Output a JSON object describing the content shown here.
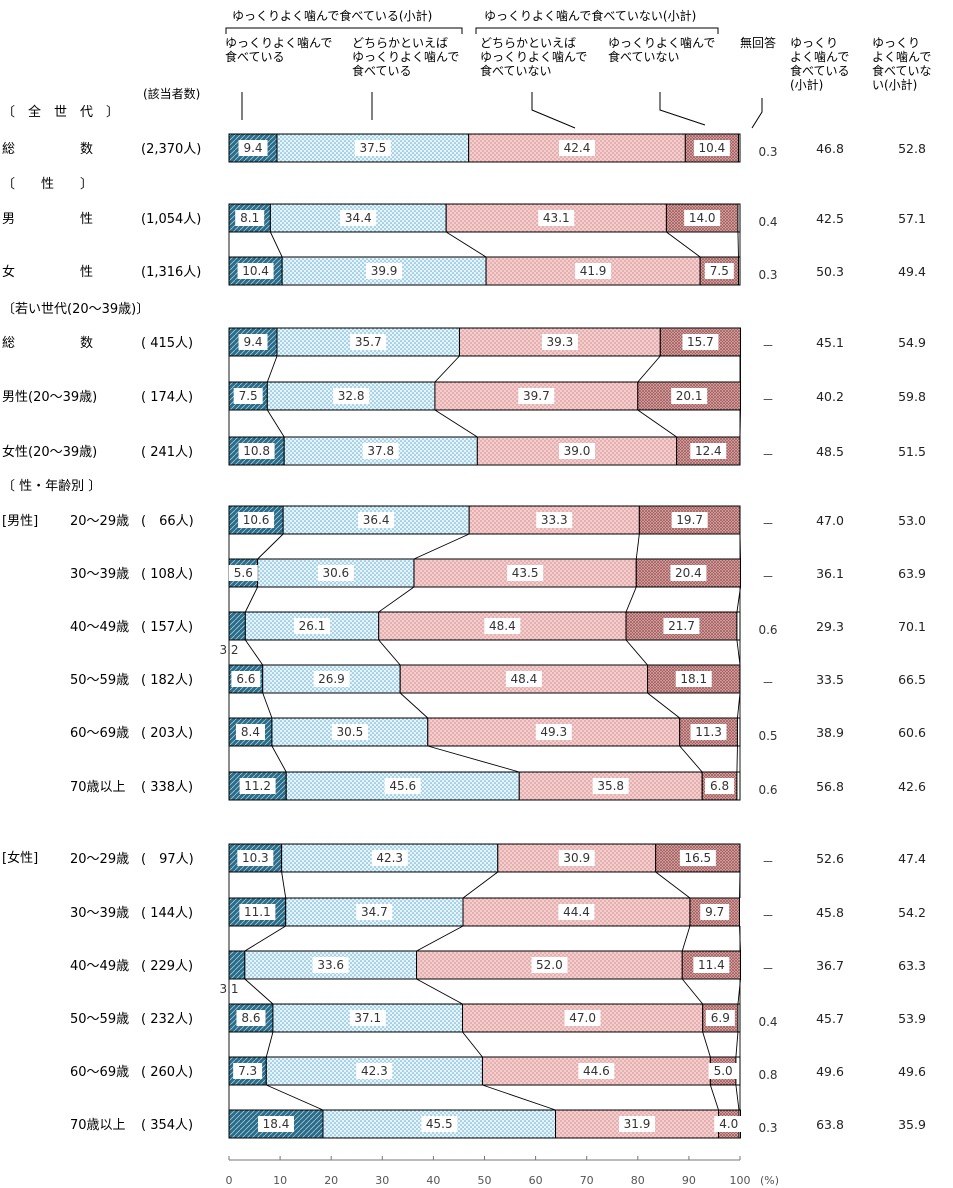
{
  "chart_data": {
    "type": "bar",
    "stacked": true,
    "orientation": "horizontal",
    "unit": "(%)",
    "xlim": [
      0,
      100
    ],
    "xticks": [
      "0",
      "10",
      "20",
      "30",
      "40",
      "50",
      "60",
      "70",
      "80",
      "90",
      "100"
    ],
    "group_headers": {
      "chew_subtotal": "ゆっくりよく噛んで食べている(小計)",
      "not_chew_subtotal": "ゆっくりよく噛んで食べていない(小計)"
    },
    "series": [
      {
        "name": "ゆっくりよく噛んで\n食べている",
        "color": "#2b6a84"
      },
      {
        "name": "どちらかといえば\nゆっくりよく噛んで\n食べている",
        "color": "#d4ecf7"
      },
      {
        "name": "どちらかといえば\nゆっくりよく噛んで\n食べていない",
        "color": "#f4c2c2"
      },
      {
        "name": "ゆっくりよく噛んで\n食べていない",
        "color": "#c47878"
      },
      {
        "name": "無回答",
        "color": "#ffffff"
      }
    ],
    "col_headers": {
      "count": "(該当者数)",
      "chew": "ゆっくり\nよく噛んで\n食べている\n(小計)",
      "not_chew": "ゆっくり\nよく噛んで\n食べていな\nい(小計)"
    },
    "section_labels": [
      {
        "text": "〔　全　世　代　〕"
      },
      {
        "text": "〔　　性　　〕"
      },
      {
        "text": "〔若い世代(20～39歳)〕"
      },
      {
        "text": "〔 性・年齢別 〕"
      }
    ],
    "group_tags": {
      "male": "[男性]",
      "female": "[女性]"
    },
    "rows": [
      {
        "label": "総　　　　　数",
        "n": "(2,370人)",
        "values": [
          9.4,
          37.5,
          42.4,
          10.4,
          0.3
        ],
        "labels": [
          "9.4",
          "37.5",
          "42.4",
          "10.4",
          "0.3"
        ],
        "chew": "46.8",
        "not_chew": "52.8"
      },
      {
        "label": "男　　　　　性",
        "n": "(1,054人)",
        "values": [
          8.1,
          34.4,
          43.1,
          14.0,
          0.4
        ],
        "labels": [
          "8.1",
          "34.4",
          "43.1",
          "14.0",
          "0.4"
        ],
        "chew": "42.5",
        "not_chew": "57.1"
      },
      {
        "label": "女　　　　　性",
        "n": "(1,316人)",
        "values": [
          10.4,
          39.9,
          41.9,
          7.5,
          0.3
        ],
        "labels": [
          "10.4",
          "39.9",
          "41.9",
          "7.5",
          "0.3"
        ],
        "chew": "50.3",
        "not_chew": "49.4"
      },
      {
        "label": "総　　　　　数",
        "n": "( 415人)",
        "values": [
          9.4,
          35.7,
          39.3,
          15.7,
          0
        ],
        "labels": [
          "9.4",
          "35.7",
          "39.3",
          "15.7",
          "－"
        ],
        "chew": "45.1",
        "not_chew": "54.9"
      },
      {
        "label": "男性(20～39歳)",
        "n": "( 174人)",
        "values": [
          7.5,
          32.8,
          39.7,
          20.1,
          0
        ],
        "labels": [
          "7.5",
          "32.8",
          "39.7",
          "20.1",
          "－"
        ],
        "chew": "40.2",
        "not_chew": "59.8"
      },
      {
        "label": "女性(20～39歳)",
        "n": "( 241人)",
        "values": [
          10.8,
          37.8,
          39.0,
          12.4,
          0
        ],
        "labels": [
          "10.8",
          "37.8",
          "39.0",
          "12.4",
          "－"
        ],
        "chew": "48.5",
        "not_chew": "51.5"
      },
      {
        "label": "20～29歳",
        "n": "(　66人)",
        "values": [
          10.6,
          36.4,
          33.3,
          19.7,
          0
        ],
        "labels": [
          "10.6",
          "36.4",
          "33.3",
          "19.7",
          "－"
        ],
        "chew": "47.0",
        "not_chew": "53.0"
      },
      {
        "label": "30～39歳",
        "n": "( 108人)",
        "values": [
          5.6,
          30.6,
          43.5,
          20.4,
          0
        ],
        "labels": [
          "5.6",
          "30.6",
          "43.5",
          "20.4",
          "－"
        ],
        "chew": "36.1",
        "not_chew": "63.9"
      },
      {
        "label": "40～49歳",
        "n": "( 157人)",
        "values": [
          3.2,
          26.1,
          48.4,
          21.7,
          0.6
        ],
        "labels": [
          "3.2",
          "26.1",
          "48.4",
          "21.7",
          "0.6"
        ],
        "chew": "29.3",
        "not_chew": "70.1"
      },
      {
        "label": "50～59歳",
        "n": "( 182人)",
        "values": [
          6.6,
          26.9,
          48.4,
          18.1,
          0
        ],
        "labels": [
          "6.6",
          "26.9",
          "48.4",
          "18.1",
          "－"
        ],
        "chew": "33.5",
        "not_chew": "66.5"
      },
      {
        "label": "60～69歳",
        "n": "( 203人)",
        "values": [
          8.4,
          30.5,
          49.3,
          11.3,
          0.5
        ],
        "labels": [
          "8.4",
          "30.5",
          "49.3",
          "11.3",
          "0.5"
        ],
        "chew": "38.9",
        "not_chew": "60.6"
      },
      {
        "label": "70歳以上",
        "n": "( 338人)",
        "values": [
          11.2,
          45.6,
          35.8,
          6.8,
          0.6
        ],
        "labels": [
          "11.2",
          "45.6",
          "35.8",
          "6.8",
          "0.6"
        ],
        "chew": "56.8",
        "not_chew": "42.6"
      },
      {
        "label": "20～29歳",
        "n": "(　97人)",
        "values": [
          10.3,
          42.3,
          30.9,
          16.5,
          0
        ],
        "labels": [
          "10.3",
          "42.3",
          "30.9",
          "16.5",
          "－"
        ],
        "chew": "52.6",
        "not_chew": "47.4"
      },
      {
        "label": "30～39歳",
        "n": "( 144人)",
        "values": [
          11.1,
          34.7,
          44.4,
          9.7,
          0
        ],
        "labels": [
          "11.1",
          "34.7",
          "44.4",
          "9.7",
          "－"
        ],
        "chew": "45.8",
        "not_chew": "54.2"
      },
      {
        "label": "40～49歳",
        "n": "( 229人)",
        "values": [
          3.1,
          33.6,
          52.0,
          11.4,
          0
        ],
        "labels": [
          "3.1",
          "33.6",
          "52.0",
          "11.4",
          "－"
        ],
        "chew": "36.7",
        "not_chew": "63.3"
      },
      {
        "label": "50～59歳",
        "n": "( 232人)",
        "values": [
          8.6,
          37.1,
          47.0,
          6.9,
          0.4
        ],
        "labels": [
          "8.6",
          "37.1",
          "47.0",
          "6.9",
          "0.4"
        ],
        "chew": "45.7",
        "not_chew": "53.9"
      },
      {
        "label": "60～69歳",
        "n": "( 260人)",
        "values": [
          7.3,
          42.3,
          44.6,
          5.0,
          0.8
        ],
        "labels": [
          "7.3",
          "42.3",
          "44.6",
          "5.0",
          "0.8"
        ],
        "chew": "49.6",
        "not_chew": "49.6"
      },
      {
        "label": "70歳以上",
        "n": "( 354人)",
        "values": [
          18.4,
          45.5,
          31.9,
          4.0,
          0.3
        ],
        "labels": [
          "18.4",
          "45.5",
          "31.9",
          "4.0",
          "0.3"
        ],
        "chew": "63.8",
        "not_chew": "35.9"
      }
    ]
  }
}
